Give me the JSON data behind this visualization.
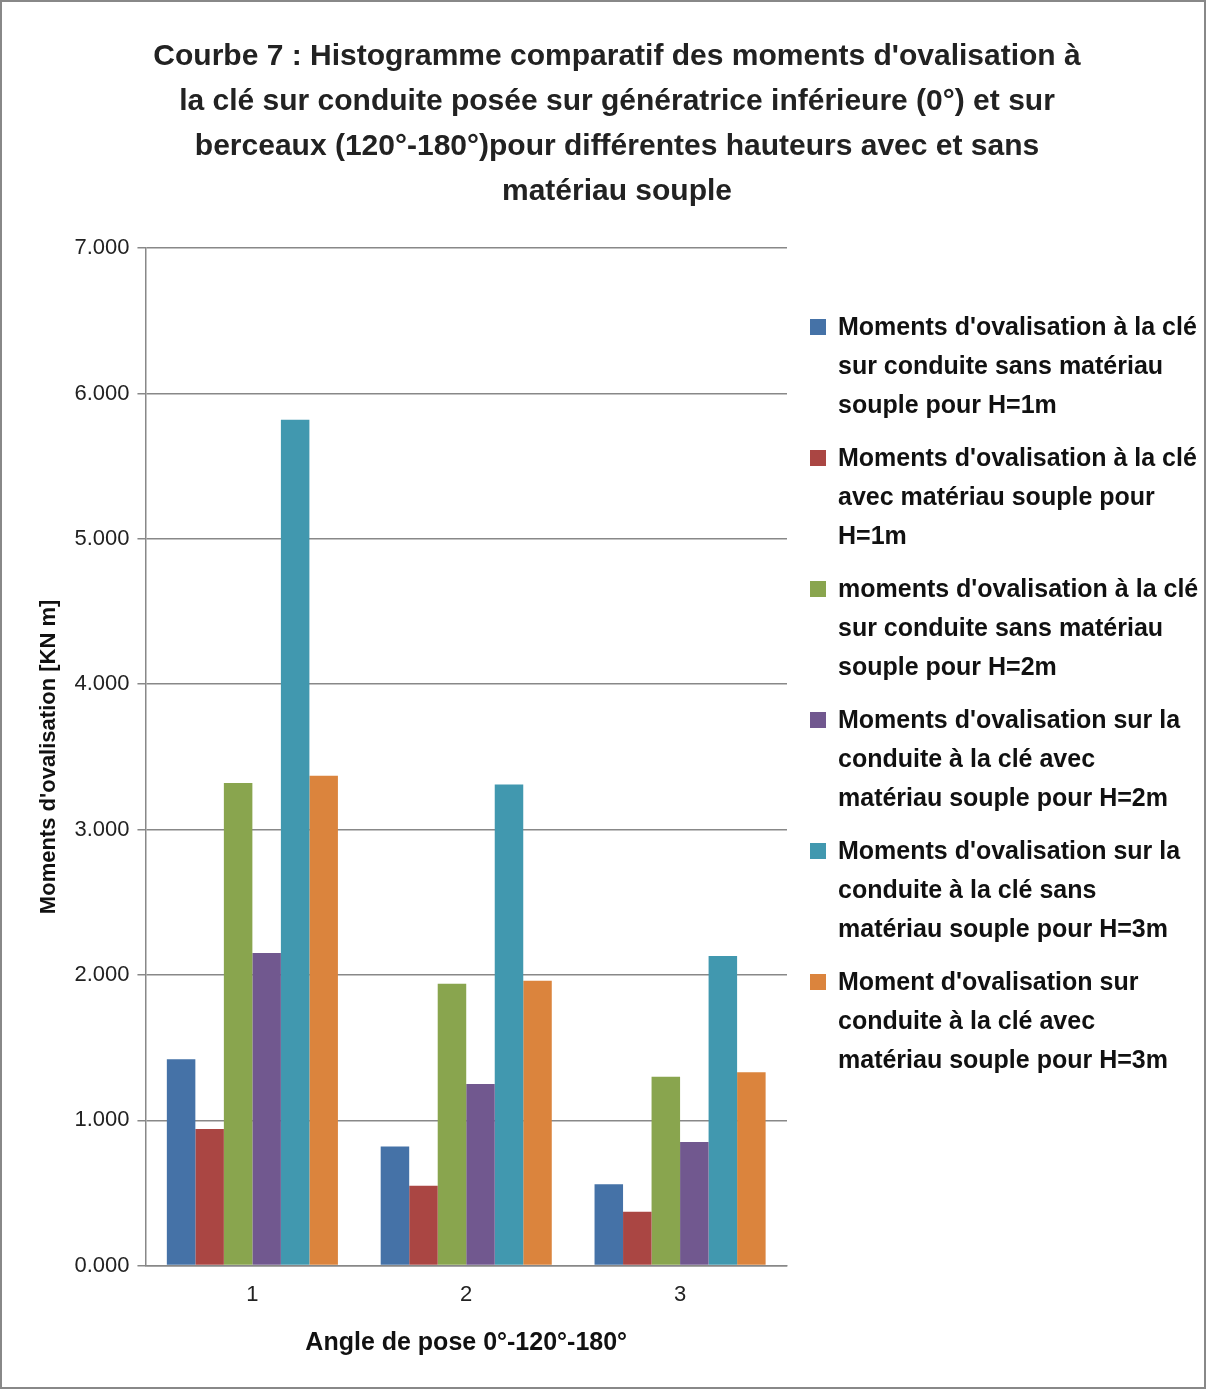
{
  "chart_data": {
    "type": "bar",
    "title": "Courbe 7 : Histogramme comparatif des moments d'ovalisation à la clé sur conduite posée sur génératrice inférieure (0°) et sur berceaux (120°-180°)pour différentes hauteurs  avec et sans matériau souple",
    "xlabel": "Angle de pose 0°-120°-180°",
    "ylabel": "Moments d'ovalisation [KN m]",
    "categories": [
      "1",
      "2",
      "3"
    ],
    "series": [
      {
        "name": "Moments d'ovalisation à la clé sur conduite sans matériau souple pour H=1m",
        "color": "#4572a7",
        "values": [
          1.42,
          0.82,
          0.56
        ]
      },
      {
        "name": "Moments d'ovalisation à la clé avec matériau souple pour H=1m",
        "color": "#aa4643",
        "values": [
          0.94,
          0.55,
          0.37
        ]
      },
      {
        "name": "moments d'ovalisation à la clé sur conduite sans matériau souple pour H=2m",
        "color": "#89a54e",
        "values": [
          3.32,
          1.94,
          1.3
        ]
      },
      {
        "name": "Moments d'ovalisation sur la conduite à la clé avec matériau souple pour H=2m",
        "color": "#71588f",
        "values": [
          2.15,
          1.25,
          0.85
        ]
      },
      {
        "name": "Moments d'ovalisation sur la conduite à la clé sans matériau souple pour H=3m",
        "color": "#4198af",
        "values": [
          5.82,
          3.31,
          2.13
        ]
      },
      {
        "name": "Moment d'ovalisation sur conduite  à la clé avec matériau souple pour H=3m",
        "color": "#db843d",
        "values": [
          3.37,
          1.96,
          1.33
        ]
      }
    ],
    "ylim": [
      0,
      7
    ],
    "yticks": [
      {
        "value": 0,
        "label": "0.000"
      },
      {
        "value": 1,
        "label": "1.000"
      },
      {
        "value": 2,
        "label": "2.000"
      },
      {
        "value": 3,
        "label": "3.000"
      },
      {
        "value": 4,
        "label": "4.000"
      },
      {
        "value": 5,
        "label": "5.000"
      },
      {
        "value": 6,
        "label": "6.000"
      },
      {
        "value": 7,
        "label": "7.000"
      }
    ],
    "grid": "y",
    "legend": "right"
  }
}
